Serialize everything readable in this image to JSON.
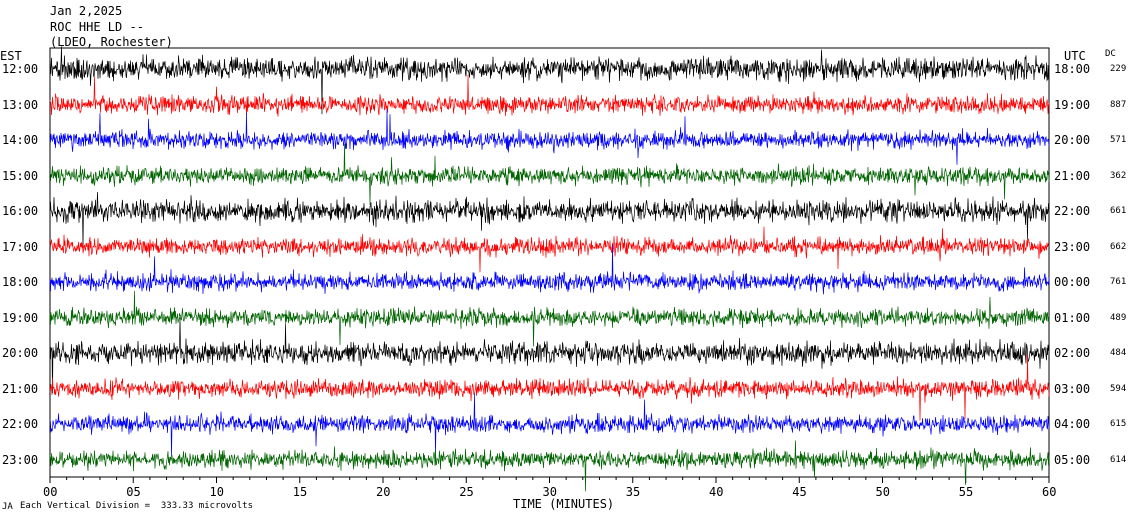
{
  "header": {
    "date": "Jan 2,2025",
    "station": "ROC HHE LD --",
    "network": "(LDEO, Rochester)"
  },
  "chart_data": {
    "type": "line",
    "title": "Jan 2,2025",
    "left_axis_label": "EST",
    "right_axis_label": "UTC",
    "dc_label": "DC",
    "xlabel": "TIME (MINUTES)",
    "xlim": [
      0,
      60
    ],
    "x_ticks": [
      "00",
      "05",
      "10",
      "15",
      "20",
      "25",
      "30",
      "35",
      "40",
      "45",
      "50",
      "55",
      "60"
    ],
    "footer_note": "Each Vertical Division =  333.33 microvolts",
    "footer_corner": "JA",
    "trace_colors": [
      "#000000",
      "#ff0000",
      "#0000ff",
      "#006400"
    ],
    "rows": [
      {
        "est": "12:00",
        "utc": "18:00",
        "dc": "229"
      },
      {
        "est": "13:00",
        "utc": "19:00",
        "dc": "887"
      },
      {
        "est": "14:00",
        "utc": "20:00",
        "dc": "571"
      },
      {
        "est": "15:00",
        "utc": "21:00",
        "dc": "362"
      },
      {
        "est": "16:00",
        "utc": "22:00",
        "dc": "661"
      },
      {
        "est": "17:00",
        "utc": "23:00",
        "dc": "662"
      },
      {
        "est": "18:00",
        "utc": "00:00",
        "dc": "761"
      },
      {
        "est": "19:00",
        "utc": "01:00",
        "dc": "489"
      },
      {
        "est": "20:00",
        "utc": "02:00",
        "dc": "484"
      },
      {
        "est": "21:00",
        "utc": "03:00",
        "dc": "594"
      },
      {
        "est": "22:00",
        "utc": "04:00",
        "dc": "615"
      },
      {
        "est": "23:00",
        "utc": "05:00",
        "dc": "614"
      }
    ]
  }
}
